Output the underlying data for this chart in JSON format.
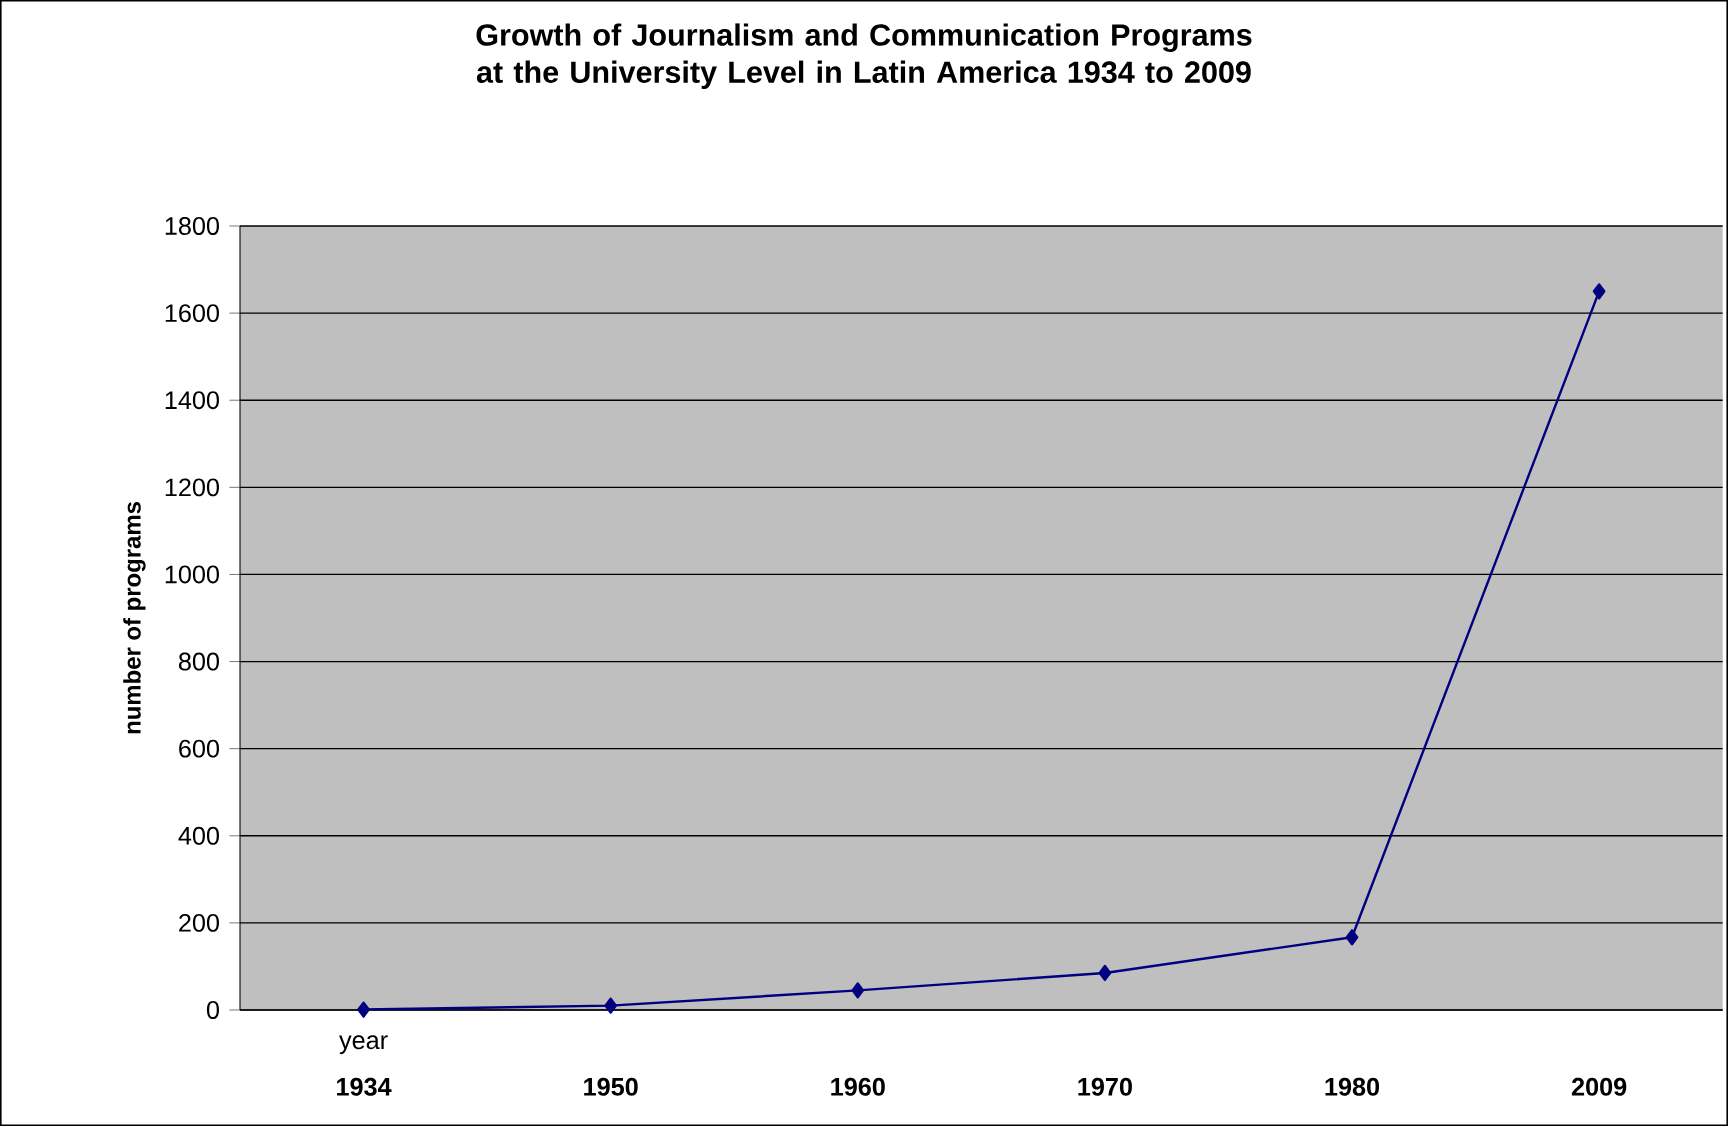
{
  "chart_data": {
    "type": "line",
    "title": "Growth of Journalism and Communication Programs at the University Level in Latin America 1934 to 2009",
    "xlabel": "year",
    "ylabel": "number of programs",
    "categories": [
      "1934",
      "1950",
      "1960",
      "1970",
      "1980",
      "2009"
    ],
    "series": [
      {
        "color": "#000080",
        "values": [
          1,
          10,
          45,
          85,
          167,
          1650
        ]
      }
    ],
    "ylim": [
      0,
      1800
    ],
    "yticks": [
      0,
      200,
      400,
      600,
      800,
      1000,
      1200,
      1400,
      1600,
      1800
    ],
    "grid": "y",
    "marker": "diamond",
    "line_style": "solid"
  }
}
